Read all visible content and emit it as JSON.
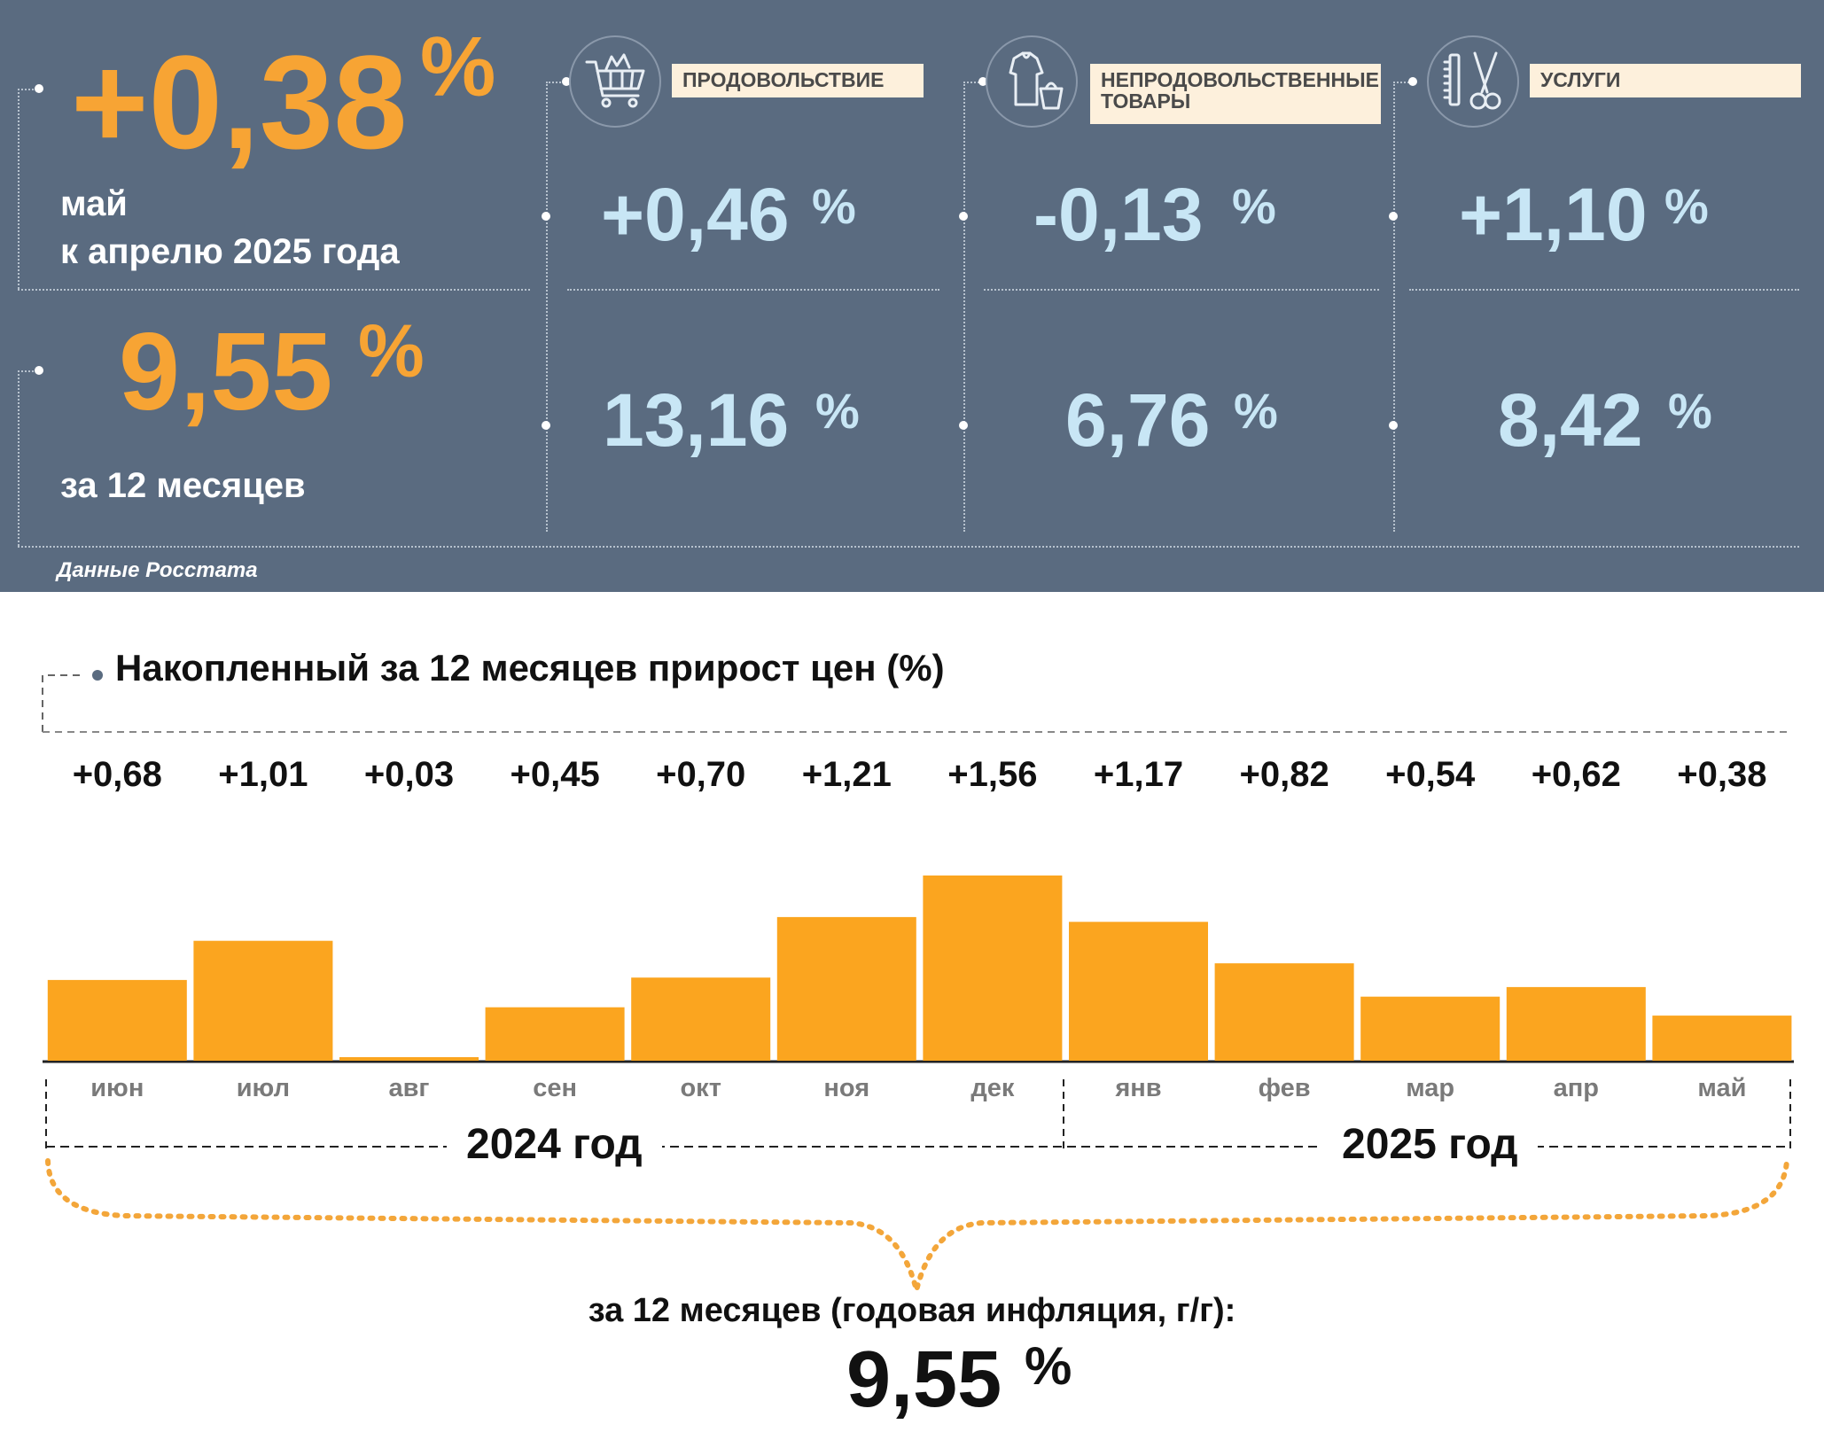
{
  "summary": {
    "monthly_value": "+0,38",
    "monthly_pct": "%",
    "monthly_caption_line1": "май",
    "monthly_caption_line2": "к апрелю 2025 года",
    "annual_value": "9,55",
    "annual_pct": "%",
    "annual_caption": "за 12 месяцев",
    "source": "Данные Росстата"
  },
  "categories": [
    {
      "label": "ПРОДОВОЛЬСТВИЕ",
      "icon": "shopping-cart-icon",
      "monthly": "+0,46",
      "annual": "13,16",
      "pct": "%"
    },
    {
      "label": "НЕПРОДОВОЛЬСТВЕННЫЕ ТОВАРЫ",
      "icon": "clothes-icon",
      "monthly": "-0,13",
      "annual": "6,76",
      "pct": "%"
    },
    {
      "label": "УСЛУГИ",
      "icon": "scissors-comb-icon",
      "monthly": "+1,10",
      "annual": "8,42",
      "pct": "%"
    }
  ],
  "chart_data": {
    "type": "bar",
    "title": "Накопленный за 12 месяцев прирост цен (%)",
    "categories": [
      "июн",
      "июл",
      "авг",
      "сен",
      "окт",
      "ноя",
      "дек",
      "янв",
      "фев",
      "мар",
      "апр",
      "май"
    ],
    "values": [
      0.68,
      1.01,
      0.03,
      0.45,
      0.7,
      1.21,
      1.56,
      1.17,
      0.82,
      0.54,
      0.62,
      0.38
    ],
    "value_labels": [
      "+0,68",
      "+1,01",
      "+0,03",
      "+0,45",
      "+0,70",
      "+1,21",
      "+1,56",
      "+1,17",
      "+0,82",
      "+0,54",
      "+0,62",
      "+0,38"
    ],
    "year_groups": [
      {
        "label": "2024 год",
        "count": 7
      },
      {
        "label": "2025 год",
        "count": 5
      }
    ],
    "ylim": [
      0,
      1.56
    ],
    "bar_color": "#fba51f",
    "grid": false
  },
  "footer": {
    "caption": "за 12 месяцев (годовая инфляция, г/г):",
    "value": "9,55",
    "pct": "%"
  },
  "colors": {
    "panel_bg": "#5a6b80",
    "accent_orange": "#f7a434",
    "light_blue": "#c8e6f5"
  }
}
